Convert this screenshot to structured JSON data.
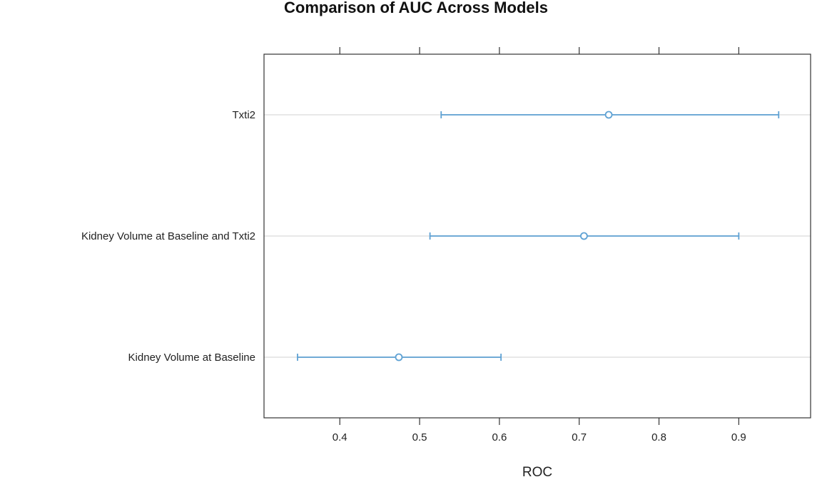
{
  "chart_data": {
    "type": "dotplot",
    "title": "Comparison of AUC Across Models",
    "xlabel": "ROC",
    "ylabel": "",
    "xlim": [
      0.305,
      0.99
    ],
    "xticks": [
      0.4,
      0.5,
      0.6,
      0.7,
      0.8,
      0.9
    ],
    "xtick_labels": [
      "0.4",
      "0.5",
      "0.6",
      "0.7",
      "0.8",
      "0.9"
    ],
    "categories": [
      "Txti2",
      "Kidney Volume at Baseline and Txti2",
      "Kidney Volume at Baseline"
    ],
    "estimates": [
      0.737,
      0.706,
      0.474
    ],
    "lower": [
      0.527,
      0.513,
      0.347
    ],
    "upper": [
      0.95,
      0.9,
      0.602
    ],
    "grid": "horizontal",
    "legend": "none",
    "colors": {
      "series": "#5fa2d4",
      "grid": "#e8e8e8",
      "axis": "#333333"
    }
  }
}
